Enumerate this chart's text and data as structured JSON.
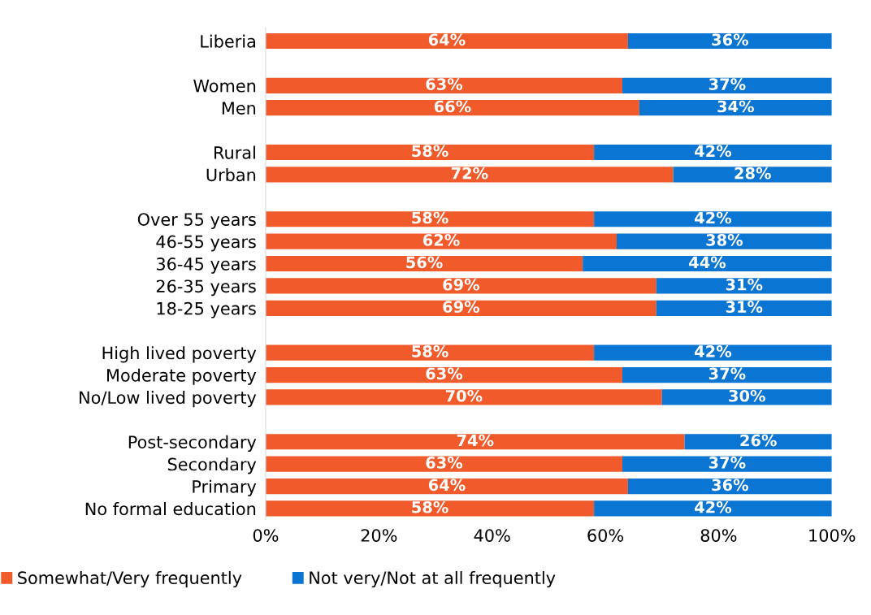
{
  "chart_data": {
    "type": "bar",
    "orientation": "horizontal",
    "stacked": true,
    "legend": "bottom",
    "grid": false,
    "categories": [
      "Liberia",
      null,
      "Women",
      "Men",
      null,
      "Rural",
      "Urban",
      null,
      "Over 55 years",
      "46-55 years",
      "36-45 years",
      "26-35 years",
      "18-25 years",
      null,
      "High lived poverty",
      "Moderate poverty",
      "No/Low lived poverty",
      null,
      "Post-secondary",
      "Secondary",
      "Primary",
      "No formal education"
    ],
    "series": [
      {
        "name": "Somewhat/Very frequently",
        "color": "#f15a2b",
        "values": [
          64,
          null,
          63,
          66,
          null,
          58,
          72,
          null,
          58,
          62,
          56,
          69,
          69,
          null,
          58,
          63,
          70,
          null,
          74,
          63,
          64,
          58
        ],
        "value_labels": [
          "64%",
          null,
          "63%",
          "66%",
          null,
          "58%",
          "72%",
          null,
          "58%",
          "62%",
          "56%",
          "69%",
          "69%",
          null,
          "58%",
          "63%",
          "70%",
          null,
          "74%",
          "63%",
          "64%",
          "58%"
        ]
      },
      {
        "name": "Not very/Not at all frequently",
        "color": "#0a75d2",
        "values": [
          36,
          null,
          37,
          34,
          null,
          42,
          28,
          null,
          42,
          38,
          44,
          31,
          31,
          null,
          42,
          37,
          30,
          null,
          26,
          37,
          36,
          42
        ],
        "value_labels": [
          "36%",
          null,
          "37%",
          "34%",
          null,
          "42%",
          "28%",
          null,
          "42%",
          "38%",
          "44%",
          "31%",
          "31%",
          null,
          "42%",
          "37%",
          "30%",
          null,
          "26%",
          "37%",
          "36%",
          "42%"
        ]
      }
    ],
    "xlim": [
      0,
      100
    ],
    "xticks": [
      {
        "value": 0,
        "label": "0%"
      },
      {
        "value": 20,
        "label": "20%"
      },
      {
        "value": 40,
        "label": "40%"
      },
      {
        "value": 60,
        "label": "60%"
      },
      {
        "value": 80,
        "label": "80%"
      },
      {
        "value": 100,
        "label": "100%"
      }
    ]
  }
}
